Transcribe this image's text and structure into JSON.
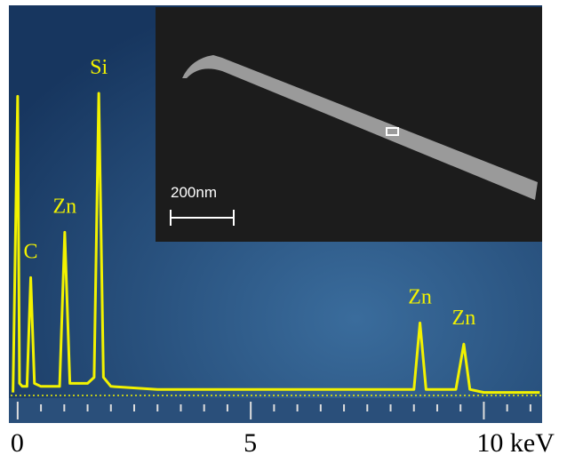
{
  "chart_data": {
    "type": "line",
    "x": [
      -0.1,
      0,
      0.04,
      0.1,
      0.2,
      0.28,
      0.36,
      0.5,
      0.9,
      1.01,
      1.12,
      1.5,
      1.64,
      1.74,
      1.84,
      2.0,
      3.0,
      4.0,
      5.0,
      6.0,
      7.0,
      8.0,
      8.5,
      8.63,
      8.76,
      9.4,
      9.57,
      9.7,
      10.0,
      11.2
    ],
    "series": [
      {
        "color": "#f2f200",
        "values": [
          1,
          99,
          4,
          3,
          3,
          39,
          4,
          3,
          3,
          54,
          4,
          4,
          6,
          100,
          6,
          3,
          2,
          2,
          2,
          2,
          2,
          2,
          2,
          24,
          2,
          2,
          17,
          2,
          1,
          1
        ]
      }
    ],
    "xlim": [
      -0.15,
      11.25
    ],
    "ylim": [
      0,
      100
    ],
    "xticks": [
      0,
      5,
      {
        "value": 10,
        "label": "10 keV"
      }
    ],
    "minor_xticks": [
      0.5,
      1,
      1.5,
      2,
      2.5,
      3,
      3.5,
      4,
      4.5,
      5.5,
      6,
      6.5,
      7,
      7.5,
      8,
      8.5,
      9,
      9.5,
      10.5,
      11
    ],
    "annotations": [
      {
        "text": "C",
        "x": 0.28
      },
      {
        "text": "Zn",
        "x": 1.01
      },
      {
        "text": "Si",
        "x": 1.74
      },
      {
        "text": "Zn",
        "x": 8.63
      },
      {
        "text": "Zn",
        "x": 9.57
      }
    ],
    "inset": {
      "scale_bar": "200nm"
    }
  }
}
